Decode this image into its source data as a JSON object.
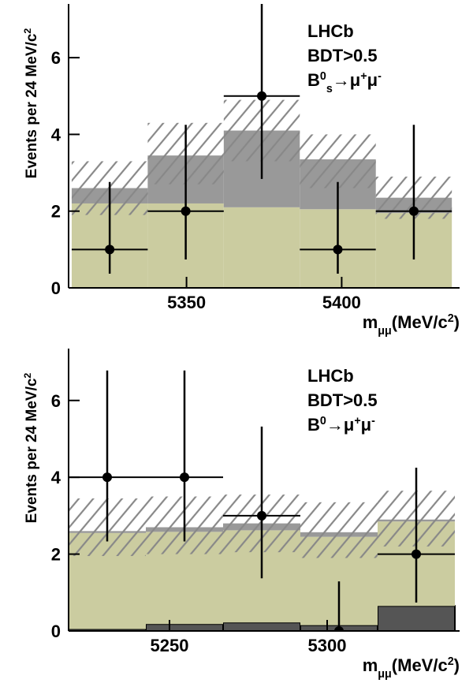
{
  "chart_data": [
    {
      "type": "histogram",
      "bins": [
        5313,
        5337.5,
        5362,
        5386.5,
        5411,
        5435.5
      ],
      "xlim": [
        5312,
        5438
      ],
      "xticks": [
        5350,
        5400
      ],
      "ylim": [
        0,
        7.4
      ],
      "yticks": [
        0,
        2,
        4,
        6
      ],
      "series": [
        {
          "color": "#cbcca0",
          "values": [
            2.2,
            2.2,
            2.1,
            2.05,
            1.95
          ]
        },
        {
          "color": "#999999",
          "values": [
            0.4,
            1.25,
            2.0,
            1.3,
            0.4
          ]
        }
      ],
      "uncertainty": {
        "color": "#888888",
        "low": [
          1.9,
          2.7,
          3.3,
          2.6,
          1.8
        ],
        "high": [
          3.3,
          4.3,
          4.9,
          4.0,
          2.9
        ]
      },
      "points": {
        "color": "#000000",
        "values": [
          1,
          2,
          5,
          1,
          2
        ],
        "err_low": [
          0.63,
          1.26,
          2.16,
          0.63,
          1.26
        ],
        "err_high": [
          1.76,
          2.25,
          2.48,
          1.76,
          2.25
        ]
      },
      "annotations": [
        "LHCb",
        "BDT>0.5"
      ],
      "decay": [
        {
          "text": "B"
        },
        {
          "text": "0",
          "shift": "super"
        },
        {
          "text": "s",
          "shift": "sub"
        },
        {
          "text": "→μ"
        },
        {
          "text": "+",
          "shift": "super"
        },
        {
          "text": "μ"
        },
        {
          "text": "-",
          "shift": "super"
        }
      ],
      "ylabel": [
        {
          "text": "Events per 24 MeV/c"
        },
        {
          "text": "2",
          "shift": "super"
        }
      ],
      "xlabel": [
        {
          "text": "m"
        },
        {
          "text": "μμ",
          "shift": "sub"
        },
        {
          "text": "(MeV/c"
        },
        {
          "text": "2",
          "shift": "super"
        },
        {
          "text": ")"
        }
      ]
    },
    {
      "type": "histogram",
      "bins": [
        5218,
        5242.5,
        5267,
        5291.5,
        5316,
        5340.5
      ],
      "xlim": [
        5218,
        5342
      ],
      "xticks": [
        5250,
        5300
      ],
      "ylim": [
        0,
        7.35
      ],
      "yticks": [
        0,
        2,
        4,
        6
      ],
      "series": [
        {
          "color": "#555555",
          "values": [
            0.05,
            0.18,
            0.22,
            0.15,
            0.65
          ]
        },
        {
          "color": "#cbcca0",
          "values": [
            2.5,
            2.4,
            2.4,
            2.3,
            2.2
          ]
        },
        {
          "color": "#999999",
          "values": [
            0.05,
            0.12,
            0.18,
            0.12,
            0.05
          ]
        }
      ],
      "uncertainty": {
        "color": "#888888",
        "low": [
          1.95,
          2.0,
          2.05,
          1.9,
          2.2
        ],
        "high": [
          3.45,
          3.5,
          3.55,
          3.35,
          3.65
        ]
      },
      "points": {
        "color": "#000000",
        "values": [
          4,
          4,
          3,
          0,
          2
        ],
        "err_low": [
          1.67,
          1.67,
          1.63,
          0,
          1.26
        ],
        "err_high": [
          2.78,
          2.78,
          2.32,
          1.29,
          2.25
        ]
      },
      "annotations": [
        "LHCb",
        "BDT>0.5"
      ],
      "decay": [
        {
          "text": "B"
        },
        {
          "text": "0",
          "shift": "super"
        },
        {
          "text": "→μ"
        },
        {
          "text": "+",
          "shift": "super"
        },
        {
          "text": "μ"
        },
        {
          "text": "-",
          "shift": "super"
        }
      ],
      "ylabel": [
        {
          "text": "Events per 24 MeV/c"
        },
        {
          "text": "2",
          "shift": "super"
        }
      ],
      "xlabel": [
        {
          "text": "m"
        },
        {
          "text": "μμ",
          "shift": "sub"
        },
        {
          "text": "(MeV/c"
        },
        {
          "text": "2",
          "shift": "super"
        },
        {
          "text": ")"
        }
      ]
    }
  ]
}
